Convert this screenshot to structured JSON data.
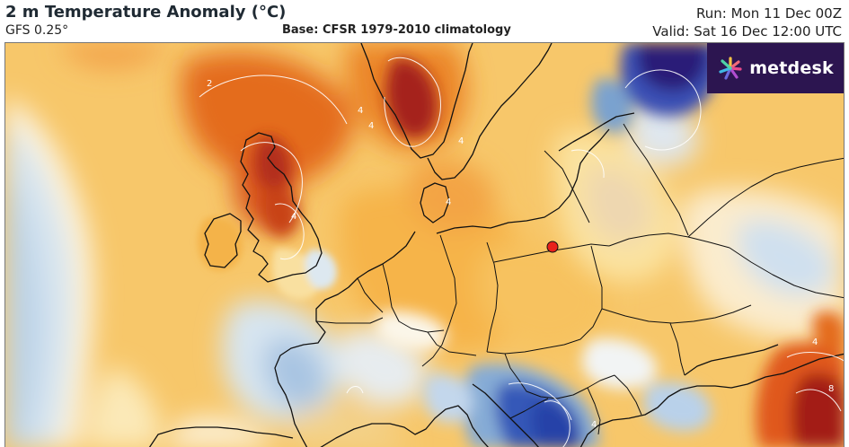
{
  "header": {
    "title": "2 m Temperature Anomaly (°C)",
    "model": "GFS 0.25°",
    "base": "Base: CFSR 1979-2010 climatology",
    "run": "Run: Mon 11 Dec 00Z",
    "valid": "Valid: Sat 16 Dec 12:00 UTC"
  },
  "logo": {
    "text": "metdesk",
    "icon": "metdesk-spark-icon"
  },
  "map": {
    "variable": "2 m temperature anomaly",
    "units": "°C",
    "contour_labels": [
      "2",
      "4",
      "4",
      "4",
      "4",
      "4",
      "4",
      "4",
      "8"
    ],
    "marker": {
      "icon": "location-dot-icon",
      "color": "#e8211b"
    },
    "colors": {
      "strong_warm": "#a31b12",
      "warm": "#e36a1b",
      "mild_warm": "#f5b040",
      "slight_warm": "#fbe08c",
      "neutral": "#fbf6e9",
      "slight_cold": "#cfe0ef",
      "cold": "#6f9fce",
      "strong_cold": "#2842a8",
      "very_cold": "#2a1a6a"
    }
  }
}
